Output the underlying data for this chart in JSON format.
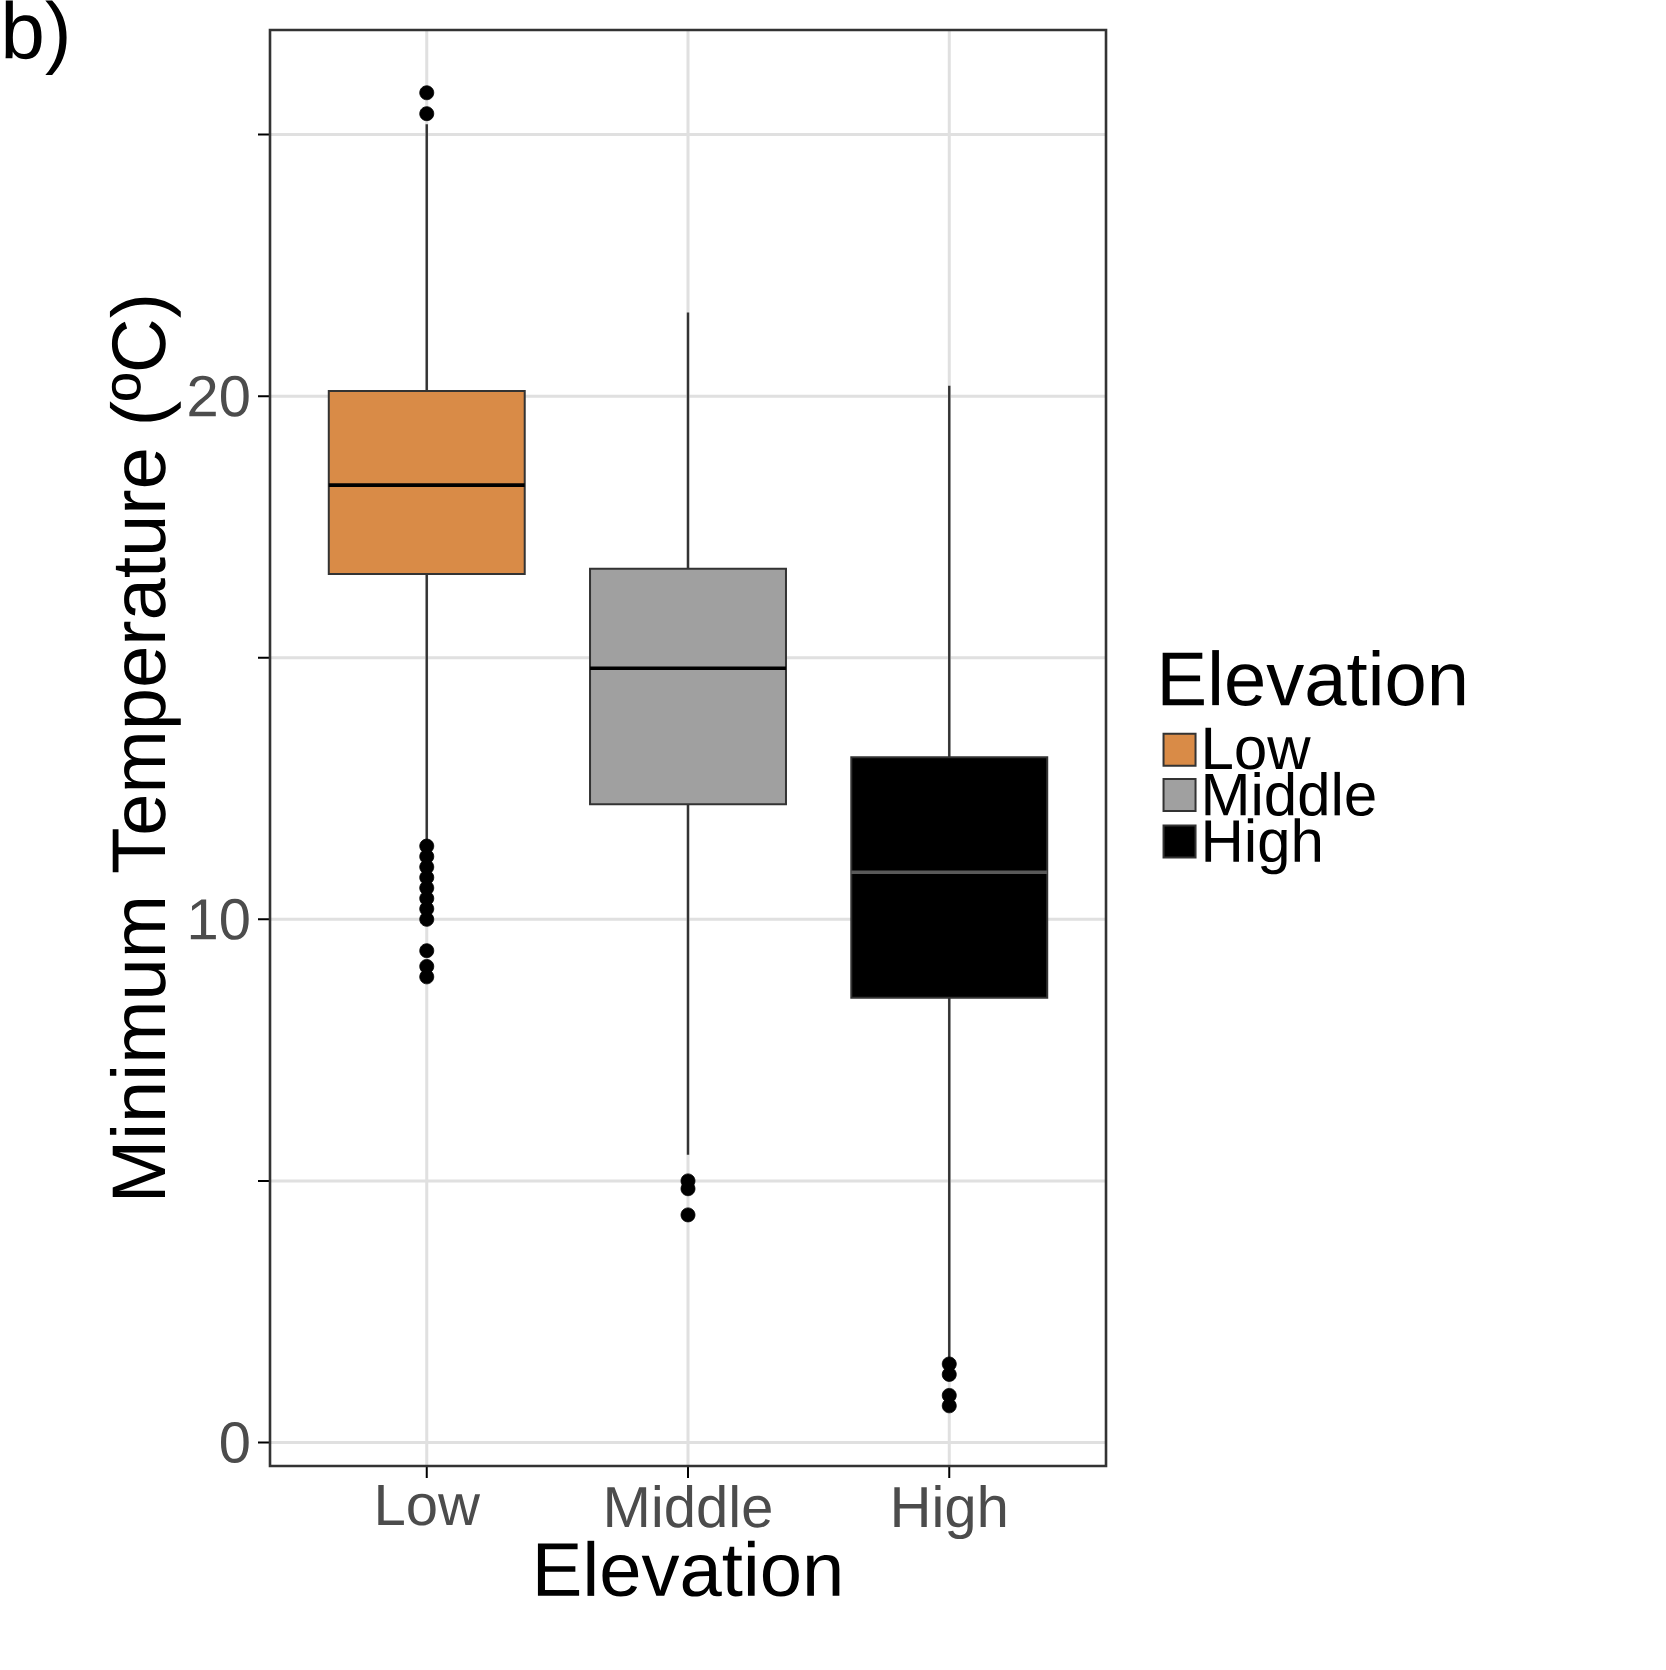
{
  "chart_data": {
    "type": "box",
    "xlabel": "Elevation",
    "ylabel": "Minimum Temperature (ºC)",
    "legend_title": "Elevation",
    "annotations": [
      "b)"
    ],
    "categories": [
      "Low",
      "Middle",
      "High"
    ],
    "series": [
      {
        "name": "Low",
        "color": "#d98b47",
        "boxes": [
          {
            "low": 11.5,
            "q1": 16.6,
            "median": 18.3,
            "q3": 20.1,
            "high": 25.2,
            "outliers": [
              25.4,
              25.8,
              11.4,
              11.2,
              11.0,
              10.8,
              10.6,
              10.4,
              10.2,
              10.0,
              9.4,
              9.1,
              8.9
            ]
          },
          null,
          null
        ]
      },
      {
        "name": "Middle",
        "color": "#a0a0a0",
        "boxes": [
          null,
          {
            "low": 5.5,
            "q1": 12.2,
            "median": 14.8,
            "q3": 16.7,
            "high": 21.6,
            "outliers": [
              5.0,
              4.85,
              4.35
            ]
          },
          null
        ]
      },
      {
        "name": "High",
        "color": "#000000",
        "boxes": [
          null,
          null,
          {
            "low": 1.55,
            "q1": 8.5,
            "median": 10.9,
            "q3": 13.1,
            "high": 20.2,
            "outliers": [
              1.5,
              1.3,
              0.9,
              0.7
            ]
          }
        ]
      }
    ],
    "ylim": [
      -0.45,
      27.0
    ],
    "yticks": [
      0,
      {
        "value": 5,
        "label": null
      },
      10,
      {
        "value": 15,
        "label": null
      },
      20,
      {
        "value": 25,
        "label": null
      }
    ],
    "grid": true,
    "legend": "right"
  }
}
